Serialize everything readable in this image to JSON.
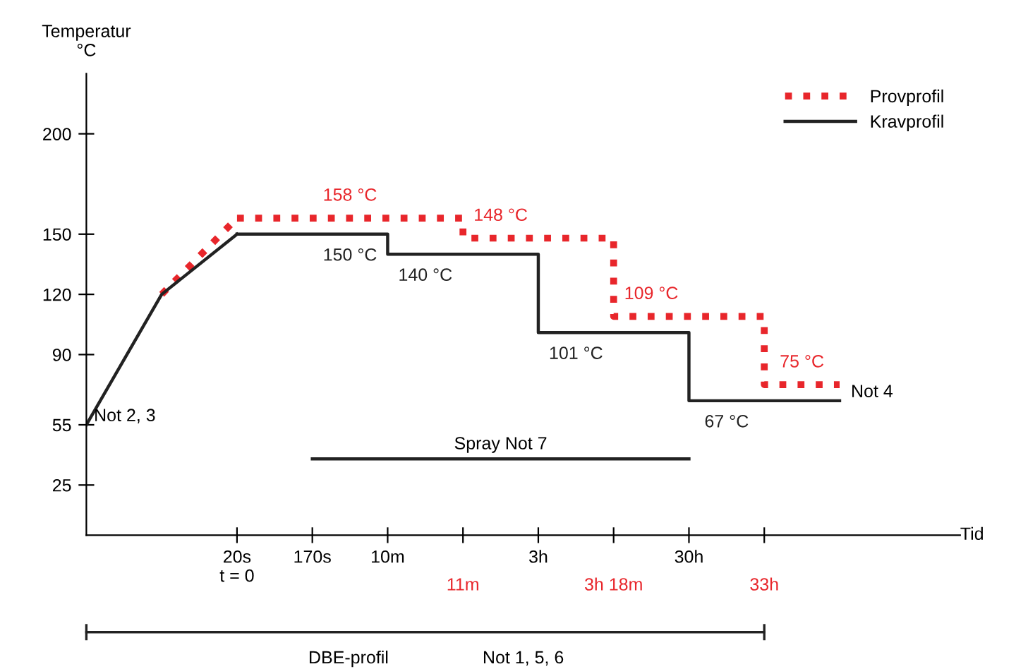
{
  "chart_data": {
    "type": "line",
    "ylabel": "Temperatur\n°C",
    "xlabel": "Tid",
    "categories": [
      null,
      null,
      "20s\nt = 0",
      "170s",
      "10m",
      "11m",
      "3h",
      "3h 18m",
      "30h",
      "33h",
      null
    ],
    "ylim": [
      0,
      230
    ],
    "yticks": [
      25,
      55,
      90,
      120,
      150,
      200
    ],
    "grid": false,
    "legend": "top right",
    "marker": "none",
    "series": [
      {
        "name": "Provprofil",
        "type": "step",
        "color": "#e8262b",
        "line_style": "dotted",
        "values": [
          null,
          null,
          158,
          158,
          158,
          148,
          148,
          109,
          109,
          75,
          75
        ],
        "value_labels": [
          null,
          null,
          null,
          "158 °C",
          null,
          "148 °C",
          null,
          "109 °C",
          null,
          "75 °C",
          null
        ]
      },
      {
        "name": "Kravprofil",
        "type": "step",
        "color": "#222222",
        "line_style": "solid",
        "values": [
          null,
          null,
          150,
          150,
          140,
          140,
          101,
          101,
          67,
          67,
          67
        ],
        "value_labels": [
          null,
          null,
          null,
          "150 °C",
          "140 °C",
          null,
          "101 °C",
          null,
          "67 °C",
          null,
          null
        ]
      },
      {
        "color": "#e8262b",
        "line_style": "dotted",
        "values": [
          null,
          120,
          158,
          null,
          null,
          null,
          null,
          null,
          null,
          null,
          null
        ]
      },
      {
        "color": "#222222",
        "line_style": "solid",
        "values": [
          55,
          120,
          150,
          null,
          null,
          null,
          null,
          null,
          null,
          null,
          null
        ]
      },
      {
        "color": "#222222",
        "line_style": "solid",
        "values": [
          null,
          null,
          null,
          38,
          38,
          38,
          38,
          38,
          38,
          null,
          null
        ]
      }
    ],
    "annotations": [
      "Not 2, 3",
      "Not 4",
      "Spray Not 7",
      "DBE-profil",
      "Not 1, 5, 6"
    ]
  }
}
